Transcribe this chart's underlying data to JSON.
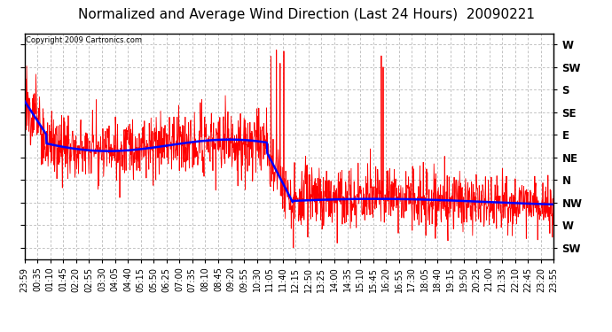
{
  "title": "Normalized and Average Wind Direction (Last 24 Hours)  20090221",
  "copyright_text": "Copyright 2009 Cartronics.com",
  "background_color": "#ffffff",
  "plot_bg_color": "#ffffff",
  "grid_color": "#aaaaaa",
  "red_color": "#ff0000",
  "blue_color": "#0000ff",
  "ytick_labels": [
    "W",
    "SW",
    "S",
    "SE",
    "E",
    "NE",
    "N",
    "NW",
    "W",
    "SW"
  ],
  "ytick_values": [
    0,
    1,
    2,
    3,
    4,
    5,
    6,
    7,
    8,
    9
  ],
  "xtick_labels": [
    "23:59",
    "00:35",
    "01:10",
    "01:45",
    "02:20",
    "02:55",
    "03:30",
    "04:05",
    "04:40",
    "05:15",
    "05:50",
    "06:25",
    "07:00",
    "07:35",
    "08:10",
    "08:45",
    "09:20",
    "09:55",
    "10:30",
    "11:05",
    "11:40",
    "12:15",
    "12:50",
    "13:25",
    "14:00",
    "14:35",
    "15:10",
    "15:45",
    "16:20",
    "16:55",
    "17:30",
    "18:05",
    "18:40",
    "19:15",
    "19:50",
    "20:25",
    "21:00",
    "21:35",
    "22:10",
    "22:45",
    "23:20",
    "23:55"
  ],
  "ylim_data": [
    0,
    9
  ],
  "title_fontsize": 11,
  "tick_fontsize": 7.0
}
